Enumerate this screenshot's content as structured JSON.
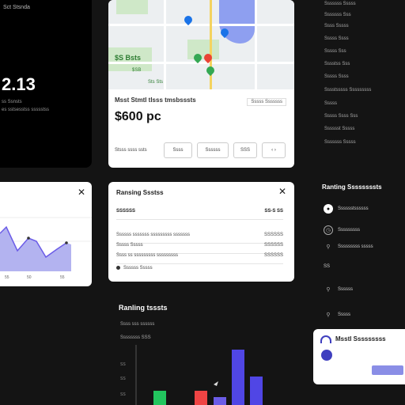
{
  "left_card": {
    "title": "Sct Stsnda",
    "value": "2.13",
    "sub1": "ss Ssnsts",
    "sub2": "es sstsesstss ssssstss"
  },
  "map_card": {
    "labels": [
      "$S Bsts",
      "$SB",
      "Sts Sts"
    ],
    "title": "Msst Stmtl tlsss tmsbsssts",
    "filter": "Sssss Sssssss",
    "price": "$600 pc",
    "actions": [
      "Stsss ssss ssts",
      "Ssss",
      "Ssssss",
      "SSS",
      "‹ ›"
    ]
  },
  "right_list": [
    "Sssssss Sssss",
    "Sssssss Sss",
    "Ssss Sssss",
    "Sssss Ssss",
    "Sssss Sss",
    "Sssstss Sss",
    "Sssss Ssss",
    "Sssstsssss Sssssssss",
    "Sssss",
    "Sssss Ssss Sss",
    "Sssssst Sssss",
    "Sssssss Sssss"
  ],
  "chart_card": {
    "ticks": [
      "55",
      "50",
      "55"
    ],
    "close": "✕"
  },
  "settings_card": {
    "title": "Ransing Ssstss",
    "close": "✕",
    "rows": [
      {
        "label": "SSSSSS",
        "value": "SS-S SS"
      },
      {
        "label": "Ssssss sssssss sssssssss sssssss",
        "value": "SSSSSS"
      },
      {
        "label": "Sssss Sssss",
        "value": "SSSSSS"
      },
      {
        "label": "Ssss ss sssssssss sssssssss",
        "value": "SSSSSS"
      },
      {
        "label": "Ssssss Sssss",
        "value": "SSSSSS"
      }
    ]
  },
  "right_panel": {
    "title": "Ranting Ssssssssts",
    "items": [
      "Sssssstssssss",
      "Sssssssss",
      "Sssssssss sssss",
      "SS",
      "Ssssss",
      "Sssss"
    ]
  },
  "rankings": {
    "title": "Ranling tsssts",
    "subs": [
      "Ssss sss ssssss",
      "Ssssssss SSS"
    ],
    "yticks": [
      "SS",
      "SS",
      "SS"
    ]
  },
  "popup": {
    "title": "Msstl Sssssssss"
  },
  "colors": {
    "accent": "#6b5ce7",
    "green": "#22c55e",
    "red": "#ef4444",
    "bar_purple": "#5046e5"
  }
}
